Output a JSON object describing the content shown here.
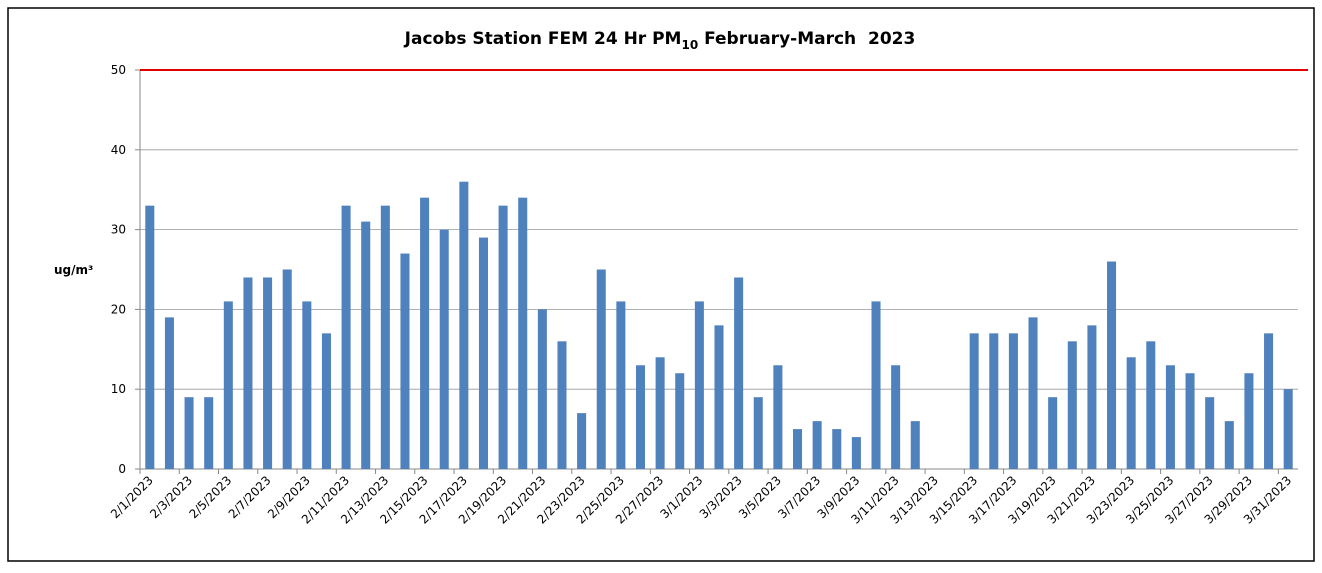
{
  "chart_data": {
    "type": "bar",
    "title": [
      "Jacobs Station FEM 24 Hr PM",
      "10",
      " February-March  2023"
    ],
    "y_label": "ug/m³",
    "categories": [
      "2/1/2023",
      null,
      "2/3/2023",
      null,
      "2/5/2023",
      null,
      "2/7/2023",
      null,
      "2/9/2023",
      null,
      "2/11/2023",
      null,
      "2/13/2023",
      null,
      "2/15/2023",
      null,
      "2/17/2023",
      null,
      "2/19/2023",
      null,
      "2/21/2023",
      null,
      "2/23/2023",
      null,
      "2/25/2023",
      null,
      "2/27/2023",
      null,
      "3/1/2023",
      null,
      "3/3/2023",
      null,
      "3/5/2023",
      null,
      "3/7/2023",
      null,
      "3/9/2023",
      null,
      "3/11/2023",
      null,
      "3/13/2023",
      null,
      "3/15/2023",
      null,
      "3/17/2023",
      null,
      "3/19/2023",
      null,
      "3/21/2023",
      null,
      "3/23/2023",
      null,
      "3/25/2023",
      null,
      "3/27/2023",
      null,
      "3/29/2023",
      null,
      "3/31/2023"
    ],
    "values": [
      33,
      19,
      9,
      9,
      21,
      24,
      24,
      25,
      21,
      17,
      33,
      31,
      33,
      27,
      34,
      30,
      36,
      29,
      33,
      34,
      20,
      16,
      7,
      25,
      21,
      13,
      14,
      12,
      21,
      18,
      24,
      9,
      13,
      5,
      6,
      5,
      4,
      21,
      13,
      6,
      null,
      null,
      17,
      17,
      17,
      19,
      9,
      16,
      18,
      26,
      14,
      16,
      13,
      12,
      9,
      6,
      12,
      17,
      10
    ],
    "color": "#4f81bd",
    "ylim": [
      0,
      50
    ],
    "yticks": [
      0,
      10,
      20,
      30,
      40,
      50
    ],
    "grid": true,
    "threshold": 50,
    "threshold_color": "#e00000"
  }
}
